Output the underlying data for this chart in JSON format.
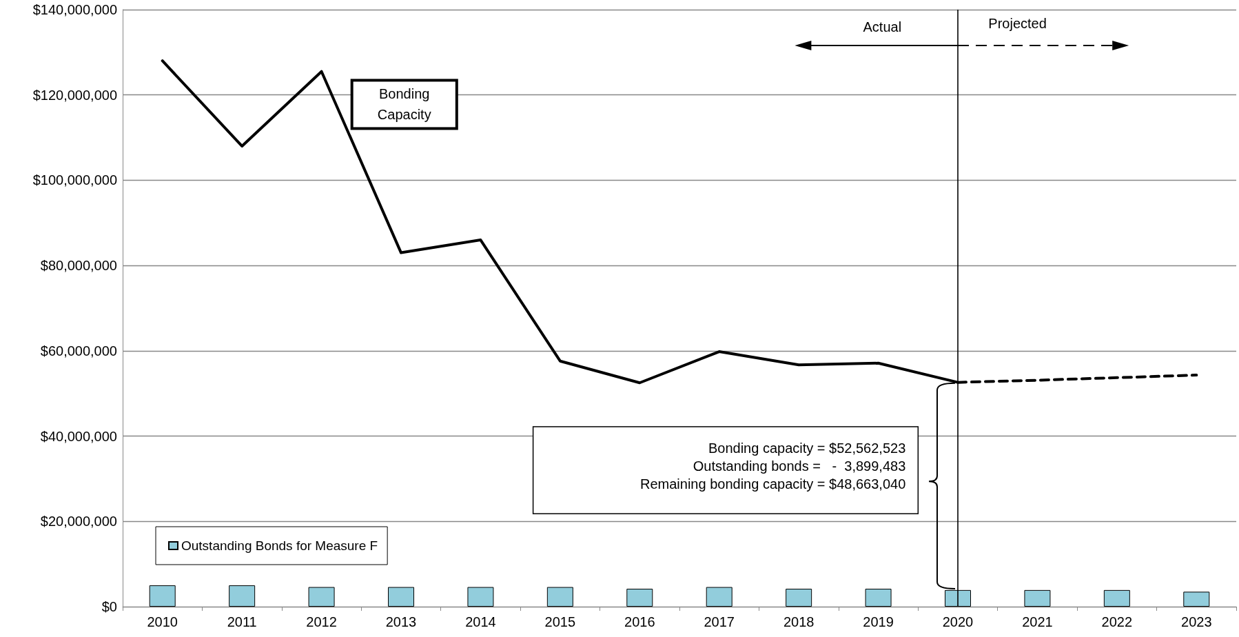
{
  "chart_data": {
    "type": "line",
    "categories": [
      "2010",
      "2011",
      "2012",
      "2013",
      "2014",
      "2015",
      "2016",
      "2017",
      "2018",
      "2019",
      "2020",
      "2021",
      "2022",
      "2023"
    ],
    "series": [
      {
        "type": "bar",
        "name": "Outstanding Bonds for Measure F",
        "color": "#92cddc",
        "values": [
          5000000,
          5000000,
          4600000,
          4600000,
          4600000,
          4600000,
          4200000,
          4600000,
          4200000,
          4200000,
          3900000,
          3900000,
          3900000,
          3500000
        ]
      },
      {
        "name": "Bonding Capacity",
        "color": "#000000",
        "line_style": "solid",
        "values": [
          128000000,
          108000000,
          125500000,
          83000000,
          86000000,
          57600000,
          52500000,
          59800000,
          56700000,
          57100000,
          52600000,
          null,
          null,
          null
        ]
      },
      {
        "color": "#000000",
        "line_style": "dashed",
        "values": [
          null,
          null,
          null,
          null,
          null,
          null,
          null,
          null,
          null,
          null,
          52600000,
          53100000,
          53700000,
          54300000
        ]
      }
    ],
    "ylim": [
      0,
      140000000
    ],
    "yticks": [
      {
        "value": 0,
        "label": "$0"
      },
      {
        "value": 20000000,
        "label": "$20,000,000"
      },
      {
        "value": 40000000,
        "label": "$40,000,000"
      },
      {
        "value": 60000000,
        "label": "$60,000,000"
      },
      {
        "value": 80000000,
        "label": "$80,000,000"
      },
      {
        "value": 100000000,
        "label": "$100,000,000"
      },
      {
        "value": 120000000,
        "label": "$120,000,000"
      },
      {
        "value": 140000000,
        "label": "$140,000,000"
      }
    ],
    "ref_lines": [
      {
        "axis": "x",
        "value": "2020",
        "color": "#000000"
      }
    ],
    "annotations": [
      "Actual",
      "Projected",
      "Bonding capacity = $52,562,523\nOutstanding bonds =   -  3,899,483\nRemaining bonding capacity = $48,663,040"
    ],
    "grid": "y",
    "legend": "bottom left",
    "marker": "none"
  }
}
